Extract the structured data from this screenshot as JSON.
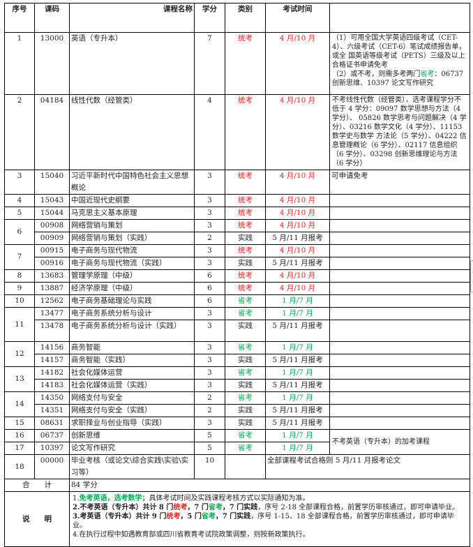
{
  "colors": {
    "unified": "#ff2020",
    "provincial": "#00b050"
  },
  "headers": {
    "seq": "序号",
    "code": "课码",
    "name": "课程名称",
    "credit": "学分",
    "type": "类别",
    "time": "考试时间",
    "remark": ""
  },
  "groups": [
    {
      "seq": "1",
      "courses": [
        {
          "code": "13000",
          "name": "英语（专升本）",
          "credit": "7",
          "type": "统考",
          "time": "4 月/10 月",
          "kind": "red"
        }
      ],
      "remark": "（1）可用全国大学英语四级考试（CET-4）、六级考试（CET-6）笔试成绩报告单，或全 国英语等级考试（PETS）三级及以上合格证书申请免考",
      "remark2a": "（2）或不考，则需多考两门",
      "remark2b": "省考",
      "remark2c": "：06737 创新思维、10397 论文写作研究"
    },
    {
      "seq": "2",
      "courses": [
        {
          "code": "04184",
          "name": "线性代数（经管类）",
          "credit": "4",
          "type": "统考",
          "time": "4 月/10 月",
          "kind": "red"
        }
      ],
      "remark": "不考线性代数（经管类），选考课程学分不低于 4 学分：09097 数学思想与方法（4 学分）、 05826 数学思考与问题解决（4 学分）、03216 数学文化（4 学分）、11153 数学史与数学 方法论（5 学分）、04222 信息管理概论（6 学分）、02117 信息组织（6 学分）、03298 创新思维理论与方法（6 学分）"
    },
    {
      "seq": "3",
      "courses": [
        {
          "code": "15040",
          "name": "习近平新时代中国特色社会主义思想概论",
          "credit": "3",
          "type": "统考",
          "time": "4 月/10 月",
          "kind": "red"
        }
      ],
      "remark": "可申请免考"
    },
    {
      "seq": "4",
      "courses": [
        {
          "code": "15043",
          "name": "中国近现代史纲要",
          "credit": "3",
          "type": "统考",
          "time": "4 月/10 月",
          "kind": "red"
        }
      ],
      "remark": ""
    },
    {
      "seq": "5",
      "courses": [
        {
          "code": "15044",
          "name": "马克思主义基本原理",
          "credit": "3",
          "type": "统考",
          "time": "4 月/10 月",
          "kind": "red"
        }
      ],
      "remark": ""
    },
    {
      "seq": "6",
      "courses": [
        {
          "code": "00908",
          "name": "网络营销与策划",
          "credit": "3",
          "type": "统考",
          "time": "4 月/10 月",
          "kind": "red"
        },
        {
          "code": "00909",
          "name": "网络营销与策划（实践）",
          "credit": "2",
          "type": "实践",
          "time": "5 月/11 月报考",
          "kind": "plain"
        }
      ]
    },
    {
      "seq": "7",
      "courses": [
        {
          "code": "00915",
          "name": "电子商务与现代物流",
          "credit": "3",
          "type": "统考",
          "time": "4 月/10 月",
          "kind": "red"
        },
        {
          "code": "00916",
          "name": "电子商务与现代物流（实践）",
          "credit": "3",
          "type": "实践",
          "time": "5 月/11 月报考",
          "kind": "plain"
        }
      ]
    },
    {
      "seq": "8",
      "courses": [
        {
          "code": "13683",
          "name": "管理学原理（中级）",
          "credit": "6",
          "type": "统考",
          "time": "4 月/10 月",
          "kind": "red"
        }
      ]
    },
    {
      "seq": "9",
      "courses": [
        {
          "code": "13887",
          "name": "经济学原理（中级）",
          "credit": "6",
          "type": "统考",
          "time": "4 月/10 月",
          "kind": "red"
        }
      ]
    },
    {
      "seq": "10",
      "courses": [
        {
          "code": "12562",
          "name": "电子商务基础理论与实践",
          "credit": "6",
          "type": "省考",
          "time": "1 月/7 月",
          "kind": "green"
        }
      ]
    },
    {
      "seq": "11",
      "courses": [
        {
          "code": "13477",
          "name": "电子商务系统分析与设计",
          "credit": "3",
          "type": "省考",
          "time": "1 月/7 月",
          "kind": "green"
        },
        {
          "code": "13478",
          "name": "电子商务系统分析与设计（实践）",
          "credit": "3",
          "type": "实践",
          "time": "5 月/11 月报考",
          "kind": "plain"
        }
      ]
    },
    {
      "seq": "12",
      "courses": [
        {
          "code": "14156",
          "name": "商务智能",
          "credit": "3",
          "type": "省考",
          "time": "1 月/7 月",
          "kind": "green"
        },
        {
          "code": "14157",
          "name": "商务智能（实践）",
          "credit": "3",
          "type": "实践",
          "time": "5 月/11 月报考",
          "kind": "plain"
        }
      ]
    },
    {
      "seq": "13",
      "courses": [
        {
          "code": "14182",
          "name": "社会化媒体运营",
          "credit": "3",
          "type": "省考",
          "time": "1 月/7 月",
          "kind": "green"
        },
        {
          "code": "14183",
          "name": "社会化媒体运营（实践）",
          "credit": "3",
          "type": "实践",
          "time": "5 月/11 月报考",
          "kind": "plain"
        }
      ]
    },
    {
      "seq": "14",
      "courses": [
        {
          "code": "14350",
          "name": "网络支付与安全",
          "credit": "2",
          "type": "省考",
          "time": "1 月/7 月",
          "kind": "green"
        },
        {
          "code": "14351",
          "name": "网络支付与安全（实践）",
          "credit": "2",
          "type": "实践",
          "time": "5 月/11 月报考",
          "kind": "plain"
        }
      ]
    },
    {
      "seq": "15",
      "courses": [
        {
          "code": "08631",
          "name": "求职择业与创业指导（实践）",
          "credit": "3",
          "type": "实践",
          "time": "5 月/11 月报考",
          "kind": "plain"
        }
      ]
    },
    {
      "seq": "16",
      "courses": [
        {
          "code": "06737",
          "name": "创新思维",
          "credit": "5",
          "type": "省考",
          "time": "1 月/7 月",
          "kind": "green"
        }
      ],
      "remark": "不考英语（专升本）的加考课程"
    },
    {
      "seq": "17",
      "courses": [
        {
          "code": "10397",
          "name": "论文写作研究",
          "credit": "5",
          "type": "省考",
          "time": "1 月/7 月",
          "kind": "green"
        }
      ]
    },
    {
      "seq": "18",
      "courses": [
        {
          "code": "00000",
          "name": "毕业考核（或论文\\综合实践\\实验\\实习等）",
          "credit": "10",
          "type": "",
          "time": "全部课程考试合格则 5 月/11 月报考论文",
          "kind": "plain"
        }
      ]
    }
  ],
  "total": {
    "label": "合　　计",
    "value": "84 学分"
  },
  "notes": {
    "label": "说　　明",
    "items": [
      [
        {
          "t": "1.",
          "k": ""
        },
        {
          "t": "免考英语，选考数学",
          "k": "green b"
        },
        {
          "t": "；具体考试时间及实践课程考核方式以实际通知为准。",
          "k": ""
        }
      ],
      [
        {
          "t": "2.不考英语（专升本）共计 8 门",
          "k": "b"
        },
        {
          "t": "统考",
          "k": "red b"
        },
        {
          "t": "，7 门",
          "k": "b"
        },
        {
          "t": "省考",
          "k": "green b"
        },
        {
          "t": "，7 门实践",
          "k": "b"
        },
        {
          "t": "，序号 2-18 全部课程合格，前置学历审核通过，即可申请毕业。",
          "k": ""
        }
      ],
      [
        {
          "t": "3.考英语（专升本）共计 9 门",
          "k": "b"
        },
        {
          "t": "统考",
          "k": "red b"
        },
        {
          "t": "，5 门",
          "k": "b"
        },
        {
          "t": "省考",
          "k": "green b"
        },
        {
          "t": "，7 门实践",
          "k": "b"
        },
        {
          "t": "，序号 1-15、18 全部课程合格，前置学历审核通过，即可申请毕业。",
          "k": ""
        }
      ],
      [
        {
          "t": "4.在执行过程中如遇教育部或四川省教育考试院政策调整，则按新政策执行。",
          "k": ""
        }
      ]
    ]
  }
}
